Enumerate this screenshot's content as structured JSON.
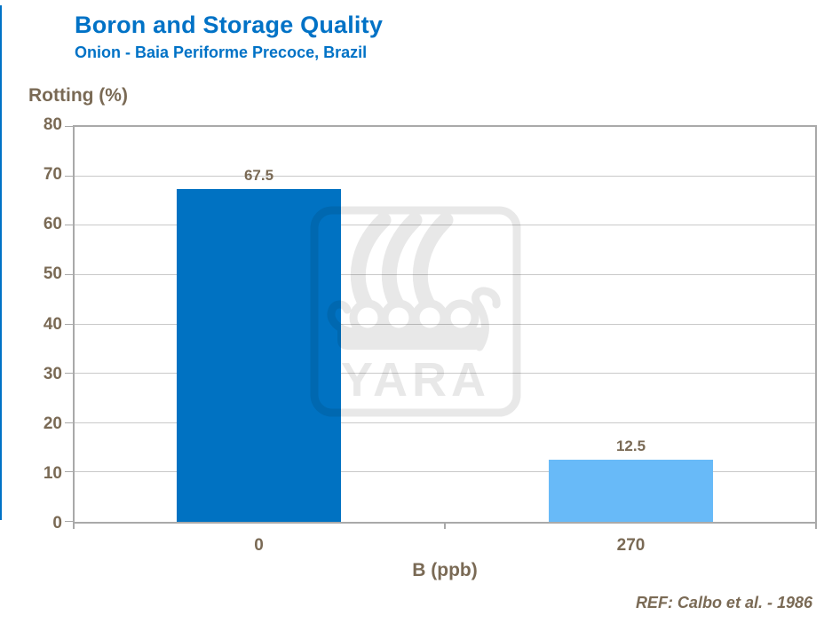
{
  "header": {
    "title": "Boron and Storage Quality",
    "subtitle": "Onion - Baia Periforme Precoce, Brazil"
  },
  "chart_data": {
    "type": "bar",
    "categories": [
      "0",
      "270"
    ],
    "values": [
      67.5,
      12.5
    ],
    "data_labels": [
      "67.5",
      "12.5"
    ],
    "bar_colors": [
      "#0072C2",
      "#68BAF8"
    ],
    "title": "Boron and Storage Quality",
    "subtitle": "Onion - Baia Periforme Precoce, Brazil",
    "xlabel": "B (ppb)",
    "ylabel": "Rotting (%)",
    "ylim": [
      0,
      80
    ],
    "ytick_step": 10,
    "yticks": [
      "80",
      "70",
      "60",
      "50",
      "40",
      "30",
      "20",
      "10",
      "0"
    ],
    "grid": true,
    "legend": "none"
  },
  "footer": {
    "reference": "REF: Calbo et al. - 1986"
  },
  "watermark": {
    "name": "yara-logo",
    "text": "YARA",
    "color": "#E8E8E8"
  },
  "colors": {
    "title_blue": "#0072C6",
    "bar_dark": "#0072C2",
    "bar_light": "#68BAF8",
    "axis_text_brown": "#7A6A55",
    "gridline": "#C9C9C9",
    "plot_border": "#A9A9A9",
    "left_edge_strip": "#0072C6",
    "background": "#FFFFFF"
  }
}
